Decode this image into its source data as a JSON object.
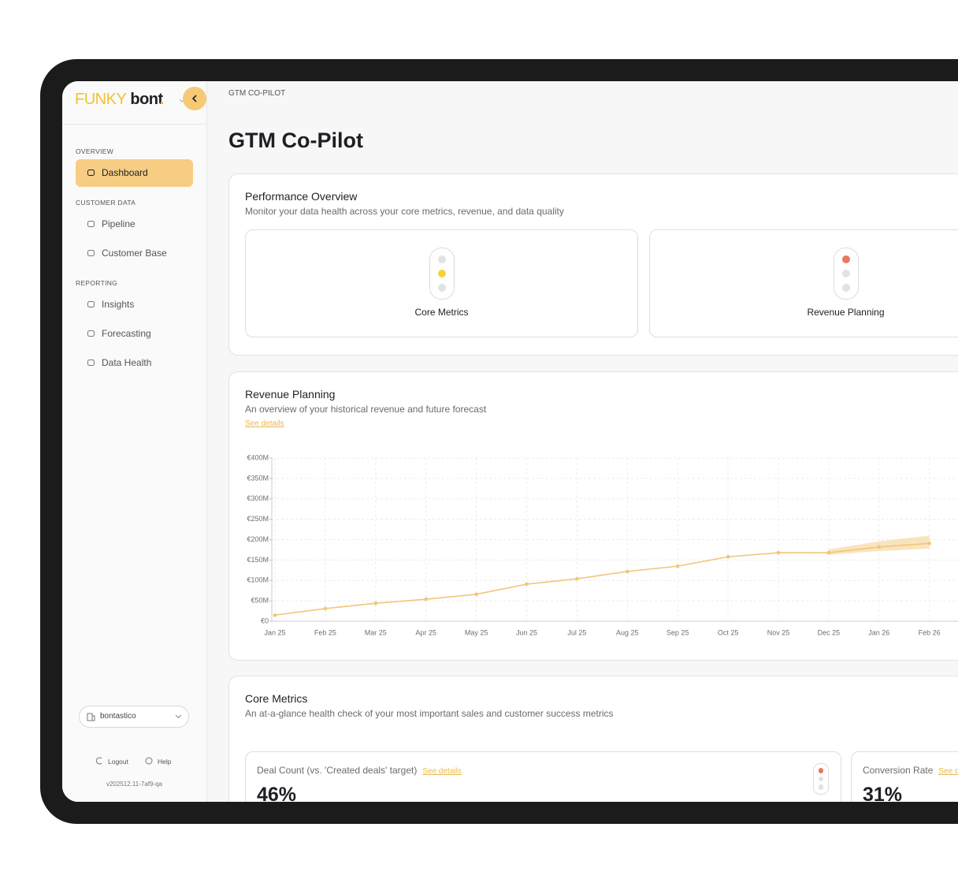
{
  "sidebar": {
    "logo": {
      "brand": "FUNKY",
      "name": "bont",
      "dot": "."
    },
    "sections": [
      {
        "title": "OVERVIEW",
        "items": [
          "Dashboard"
        ]
      },
      {
        "title": "CUSTOMER DATA",
        "items": [
          "Pipeline",
          "Customer Base"
        ]
      },
      {
        "title": "REPORTING",
        "items": [
          "Insights",
          "Forecasting",
          "Data Health"
        ]
      }
    ],
    "workspace": "bontastico",
    "footer": {
      "logout": "Logout",
      "help": "Help",
      "version": "v202512.11-7af9-qa"
    }
  },
  "breadcrumb": "GTM CO-PILOT",
  "title": "GTM Co-Pilot",
  "performance_overview": {
    "title": "Performance Overview",
    "subtitle": "Monitor your data health across your core metrics, revenue, and data quality",
    "cards": [
      {
        "label": "Core Metrics",
        "active_light": 1,
        "color": "#f3d23c"
      },
      {
        "label": "Revenue Planning",
        "active_light": 0,
        "color": "#e8795e"
      }
    ]
  },
  "revenue_planning": {
    "title": "Revenue Planning",
    "subtitle": "An overview of your historical revenue and future forecast",
    "link": "See details",
    "chart_data": {
      "type": "line",
      "categories": [
        "Jan 25",
        "Feb 25",
        "Mar 25",
        "Apr 25",
        "May 25",
        "Jun 25",
        "Jul 25",
        "Aug 25",
        "Sep 25",
        "Oct 25",
        "Nov 25",
        "Dec 25",
        "Jan 26",
        "Feb 26"
      ],
      "series": [
        {
          "color": "#f0c67a",
          "values": [
            15,
            31,
            44,
            54,
            66,
            91,
            104,
            122,
            135,
            158,
            168,
            168,
            null,
            null
          ]
        },
        {
          "color": "#f0c67a",
          "values": [
            null,
            null,
            null,
            null,
            null,
            null,
            null,
            null,
            null,
            null,
            null,
            168,
            182,
            191
          ]
        }
      ],
      "band": {
        "color": "#f7d9a3",
        "lower": [
          null,
          null,
          null,
          null,
          null,
          null,
          null,
          null,
          null,
          null,
          null,
          163,
          172,
          178
        ],
        "upper": [
          null,
          null,
          null,
          null,
          null,
          null,
          null,
          null,
          null,
          null,
          null,
          176,
          196,
          210
        ]
      },
      "ylim": [
        0,
        400
      ],
      "yticks": [
        {
          "value": 0,
          "label": "€0"
        },
        {
          "value": 50,
          "label": "€50M"
        },
        {
          "value": 100,
          "label": "€100M"
        },
        {
          "value": 150,
          "label": "€150M"
        },
        {
          "value": 200,
          "label": "€200M"
        },
        {
          "value": 250,
          "label": "€250M"
        },
        {
          "value": 300,
          "label": "€300M"
        },
        {
          "value": 350,
          "label": "€350M"
        },
        {
          "value": 400,
          "label": "€400M"
        }
      ],
      "grid": true
    }
  },
  "core_metrics": {
    "title": "Core Metrics",
    "subtitle": "An at-a-glance health check of your most important sales and customer success metrics",
    "metrics": [
      {
        "label": "Deal Count (vs. 'Created deals' target)",
        "link": "See details",
        "value": "46%"
      },
      {
        "label": "Conversion Rate",
        "link": "See details",
        "value": "31%"
      }
    ]
  }
}
